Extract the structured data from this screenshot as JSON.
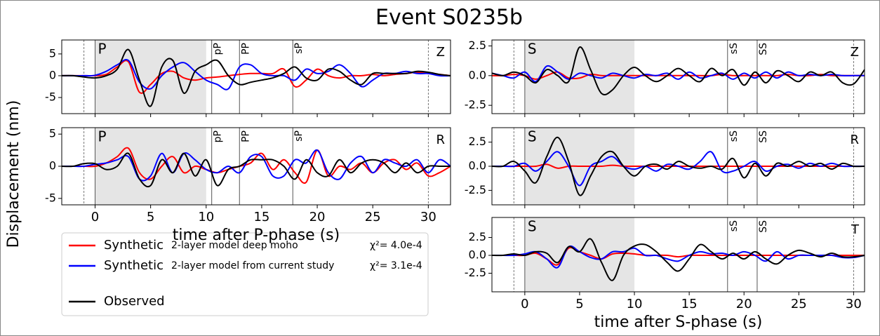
{
  "title": "Event S0235b",
  "ylabel": "Displacement (nm)",
  "legend": {
    "notes": [
      "2-layer model deep moho",
      "2-layer model from current study"
    ],
    "fits": [
      "χ²= 4.0e-4",
      "χ²= 3.1e-4"
    ]
  },
  "chart_data": [
    {
      "type": "line",
      "phase": "P",
      "component": "Z",
      "shade": [
        0,
        10
      ],
      "window": [
        -1,
        30
      ],
      "onset": 0,
      "phases": [
        {
          "label": "pP",
          "time": 10.5
        },
        {
          "label": "PP",
          "time": 13
        },
        {
          "label": "sP",
          "time": 17.8
        }
      ],
      "xlim": [
        -3,
        32
      ],
      "xticks": [
        0,
        5,
        10,
        15,
        20,
        25,
        30
      ],
      "ylim": [
        -8.7,
        8.2
      ],
      "yticks": [
        5,
        0,
        -5
      ],
      "x": [
        -3,
        -2,
        -1,
        0,
        1,
        2,
        3,
        4,
        5,
        6,
        7,
        8,
        9,
        10,
        11,
        12,
        13,
        14,
        15,
        16,
        17,
        18,
        19,
        20,
        21,
        22,
        23,
        24,
        25,
        26,
        27,
        28,
        29,
        30,
        31,
        32
      ],
      "series": [
        {
          "name": "Synthetic",
          "color": "#ff0000",
          "values": [
            0,
            0,
            0,
            0,
            0.3,
            2,
            3.2,
            -3.8,
            -2,
            0.5,
            1,
            -0.5,
            -1,
            -0.5,
            -0.3,
            0,
            0.3,
            0.5,
            0.5,
            0.5,
            1.5,
            -2.5,
            -1,
            1.5,
            0,
            -0.5,
            0,
            0,
            0.3,
            0,
            0.3,
            0.5,
            0.8,
            0.5,
            0.3,
            0
          ]
        },
        {
          "name": "Synthetic",
          "color": "#0000ff",
          "values": [
            0,
            0,
            0,
            0.1,
            1,
            2.5,
            3.5,
            -1.5,
            -3,
            0,
            2,
            3,
            1,
            -1,
            -2,
            -3,
            2,
            2.5,
            0.5,
            0,
            0,
            -1,
            1.5,
            0.5,
            1,
            2.5,
            0.5,
            -2.5,
            -1,
            0.5,
            0.5,
            1,
            0.5,
            0.5,
            0,
            0
          ]
        },
        {
          "name": "Observed",
          "color": "#000000",
          "values": [
            0,
            0,
            -0.3,
            -0.5,
            0,
            1.5,
            6,
            -1,
            -7,
            2,
            3.5,
            -4,
            1,
            2.5,
            3.5,
            0,
            -2,
            -1.5,
            -1,
            -0.5,
            0.5,
            2,
            -0.5,
            -1,
            1.5,
            1,
            -1,
            -2,
            0.5,
            0.5,
            0.5,
            0.5,
            1,
            0.8,
            0.3,
            0
          ]
        }
      ]
    },
    {
      "type": "line",
      "phase": "P",
      "component": "R",
      "shade": [
        0,
        10
      ],
      "window": [
        -1,
        30
      ],
      "onset": 0,
      "phases": [
        {
          "label": "pP",
          "time": 10.5
        },
        {
          "label": "PP",
          "time": 13
        },
        {
          "label": "sP",
          "time": 17.8
        }
      ],
      "xlim": [
        -3,
        32
      ],
      "xticks": [
        0,
        5,
        10,
        15,
        20,
        25,
        30
      ],
      "ylim": [
        -6,
        6
      ],
      "yticks": [
        5,
        0,
        -5
      ],
      "xlabel": "time after P-phase (s)",
      "x": [
        -3,
        -2,
        -1,
        0,
        1,
        2,
        3,
        4,
        5,
        6,
        7,
        8,
        9,
        10,
        11,
        12,
        13,
        14,
        15,
        16,
        17,
        18,
        19,
        20,
        21,
        22,
        23,
        24,
        25,
        26,
        27,
        28,
        29,
        30,
        31,
        32
      ],
      "series": [
        {
          "name": "Synthetic",
          "color": "#ff0000",
          "values": [
            0,
            0,
            0,
            0,
            0.5,
            1.5,
            2.8,
            -1,
            -2,
            0,
            1.5,
            -1,
            0,
            -0.5,
            -1,
            -0.5,
            0,
            0.5,
            2,
            -0.5,
            1,
            -1,
            -2.5,
            2.5,
            -1.5,
            0,
            -0.5,
            0.5,
            -1,
            0.5,
            1,
            -0.5,
            0.5,
            -1.5,
            -1,
            0
          ]
        },
        {
          "name": "Synthetic",
          "color": "#0000ff",
          "values": [
            0,
            0,
            0,
            0.3,
            0.5,
            1,
            1.5,
            -2,
            -1.5,
            2,
            -1,
            2,
            1,
            -0.5,
            -1,
            0,
            -1,
            1.5,
            1.5,
            -1.5,
            -1.5,
            1,
            0.5,
            2.5,
            -1,
            -2,
            0.5,
            1.5,
            -1,
            1,
            0.5,
            0,
            1,
            -1,
            1,
            0
          ]
        },
        {
          "name": "Observed",
          "color": "#000000",
          "values": [
            0,
            0,
            0.4,
            0.4,
            -0.5,
            0,
            2,
            -2,
            -3,
            1,
            -1,
            2,
            -1.5,
            1,
            -3,
            -0.5,
            0,
            1,
            1,
            1,
            0,
            -2,
            1,
            -1,
            -1.5,
            1,
            -1,
            0.5,
            1,
            0.5,
            -1,
            0.5,
            -1,
            0,
            0,
            0
          ]
        }
      ]
    },
    {
      "type": "line",
      "phase": "S",
      "component": "Z",
      "shade": [
        0,
        10
      ],
      "window": [
        -1,
        30
      ],
      "onset": 0,
      "phases": [
        {
          "label": "sS",
          "time": 18.5
        },
        {
          "label": "SS",
          "time": 21.2
        }
      ],
      "xlim": [
        -3,
        31
      ],
      "xticks": [
        0,
        5,
        10,
        15,
        20,
        25,
        30
      ],
      "ylim": [
        -3.2,
        3
      ],
      "yticks": [
        2.5,
        {
          "value": 0,
          "label": "0.0"
        },
        -2.5
      ],
      "x": [
        -3,
        -2,
        -1,
        0,
        1,
        2,
        3,
        4,
        5,
        6,
        7,
        8,
        9,
        10,
        11,
        12,
        13,
        14,
        15,
        16,
        17,
        18,
        19,
        20,
        21,
        22,
        23,
        24,
        25,
        26,
        27,
        28,
        29,
        30,
        31
      ],
      "series": [
        {
          "name": "Synthetic",
          "color": "#ff0000",
          "values": [
            0,
            0,
            0.1,
            0,
            -0.3,
            0,
            0.3,
            -0.2,
            -0.2,
            0.1,
            0,
            0,
            0,
            0,
            0,
            0,
            0,
            0,
            0,
            0,
            0,
            0.1,
            0,
            0,
            0,
            0,
            0,
            0.1,
            0,
            0,
            0.1,
            0,
            0,
            0,
            0
          ]
        },
        {
          "name": "Synthetic",
          "color": "#0000ff",
          "values": [
            0.2,
            0,
            -0.2,
            0.3,
            -0.5,
            0.8,
            0.3,
            -0.3,
            0.2,
            0,
            -0.2,
            0.2,
            0,
            -0.2,
            0.1,
            0,
            0.2,
            -0.3,
            0.3,
            -0.2,
            0,
            0.2,
            -0.3,
            0.2,
            -0.2,
            0.3,
            -0.2,
            0.3,
            0,
            0.1,
            0,
            0.1,
            0,
            0,
            0
          ]
        },
        {
          "name": "Observed",
          "color": "#000000",
          "values": [
            0.2,
            0,
            0.3,
            0,
            -0.6,
            0.5,
            0,
            -0.5,
            2.4,
            0.5,
            -1.5,
            -1.2,
            0,
            0.7,
            0,
            -0.5,
            0,
            0.6,
            0,
            -0.5,
            0.6,
            0,
            0.5,
            -0.8,
            0.3,
            -0.6,
            0.4,
            0,
            -0.5,
            0.3,
            0,
            0.3,
            -0.6,
            -0.7,
            0.5
          ]
        }
      ]
    },
    {
      "type": "line",
      "phase": "S",
      "component": "R",
      "shade": [
        0,
        10
      ],
      "window": [
        -1,
        30
      ],
      "onset": 0,
      "phases": [
        {
          "label": "sS",
          "time": 18.5
        },
        {
          "label": "SS",
          "time": 21.2
        }
      ],
      "xlim": [
        -3,
        31
      ],
      "xticks": [
        0,
        5,
        10,
        15,
        20,
        25,
        30
      ],
      "ylim": [
        -4,
        4
      ],
      "yticks": [
        2.5,
        {
          "value": 0,
          "label": "0.0"
        },
        -2.5
      ],
      "x": [
        -3,
        -2,
        -1,
        0,
        1,
        2,
        3,
        4,
        5,
        6,
        7,
        8,
        9,
        10,
        11,
        12,
        13,
        14,
        15,
        16,
        17,
        18,
        19,
        20,
        21,
        22,
        23,
        24,
        25,
        26,
        27,
        28,
        29,
        30,
        31
      ],
      "series": [
        {
          "name": "Synthetic",
          "color": "#ff0000",
          "values": [
            0,
            0,
            0,
            0,
            0,
            0.2,
            -0.2,
            0,
            0,
            0,
            0,
            0.1,
            0,
            0,
            0,
            0,
            0,
            0,
            0,
            0,
            0,
            0,
            0,
            0,
            0,
            0,
            0,
            0,
            0,
            0,
            0,
            0,
            0,
            0,
            0
          ]
        },
        {
          "name": "Synthetic",
          "color": "#0000ff",
          "values": [
            0,
            0,
            0,
            0.3,
            -0.5,
            0.5,
            1.5,
            0,
            -2,
            0,
            0.5,
            1,
            0,
            -0.3,
            0,
            -0.5,
            0.2,
            0,
            -0.3,
            0.5,
            1.5,
            -0.5,
            -0.5,
            0,
            0.5,
            -0.5,
            0,
            0.2,
            -0.2,
            0.3,
            0,
            0.3,
            0,
            0,
            0
          ]
        },
        {
          "name": "Observed",
          "color": "#000000",
          "values": [
            0,
            0,
            0.5,
            -0.5,
            -1.7,
            1,
            3,
            0.5,
            -3,
            -1,
            1,
            1.5,
            0,
            -1,
            0,
            0.2,
            -0.3,
            0.5,
            0,
            -0.2,
            0,
            -0.3,
            0.8,
            -1.2,
            0.3,
            -1,
            0.3,
            0,
            0.5,
            0,
            0.3,
            -0.3,
            0.3,
            0,
            0
          ]
        }
      ]
    },
    {
      "type": "line",
      "phase": "S",
      "component": "T",
      "shade": [
        0,
        10
      ],
      "window": [
        -1,
        30
      ],
      "onset": 0,
      "phases": [
        {
          "label": "sS",
          "time": 18.5
        },
        {
          "label": "SS",
          "time": 21.2
        }
      ],
      "xlim": [
        -3,
        31
      ],
      "xticks": [
        0,
        5,
        10,
        15,
        20,
        25,
        30
      ],
      "ylim": [
        -5.1,
        5.3
      ],
      "yticks": [
        2.5,
        {
          "value": 0,
          "label": "0.0"
        },
        -2.5
      ],
      "xlabel": "time after S-phase (s)",
      "x": [
        -3,
        -2,
        -1,
        0,
        1,
        2,
        3,
        4,
        5,
        6,
        7,
        8,
        9,
        10,
        11,
        12,
        13,
        14,
        15,
        16,
        17,
        18,
        19,
        20,
        21,
        22,
        23,
        24,
        25,
        26,
        27,
        28,
        29,
        30,
        31
      ],
      "series": [
        {
          "name": "Synthetic",
          "color": "#ff0000",
          "values": [
            0,
            0,
            0,
            0,
            0.3,
            -0.5,
            -1.3,
            1,
            0.5,
            0,
            -0.5,
            0.2,
            0.3,
            0.2,
            0,
            0,
            0,
            -0.2,
            0,
            0,
            0,
            0,
            0,
            0,
            0,
            0,
            0,
            0,
            0,
            0,
            0,
            0,
            0,
            0,
            0
          ]
        },
        {
          "name": "Synthetic",
          "color": "#0000ff",
          "values": [
            0,
            0,
            0,
            0.2,
            0.5,
            -0.5,
            -1.7,
            1.2,
            0.5,
            -0.3,
            -0.5,
            0.5,
            0.5,
            1,
            0,
            0,
            -0.5,
            -0.8,
            0,
            0.5,
            0.2,
            0.3,
            0,
            0.5,
            0,
            -0.8,
            0.5,
            -0.5,
            0,
            0,
            0,
            0,
            -0.3,
            -0.3,
            0
          ]
        },
        {
          "name": "Observed",
          "color": "#000000",
          "values": [
            0,
            0,
            0.2,
            0,
            0.5,
            0.3,
            -1,
            1.2,
            0.5,
            2.3,
            -1,
            -3.5,
            0,
            1.3,
            1.5,
            0.5,
            -1,
            -2.2,
            -0.5,
            1.5,
            0.5,
            -0.5,
            0.3,
            -0.5,
            0.5,
            -0.5,
            -1.2,
            0,
            0.7,
            0.3,
            -0.2,
            0.3,
            -0.2,
            -0.2,
            0
          ]
        }
      ]
    }
  ]
}
